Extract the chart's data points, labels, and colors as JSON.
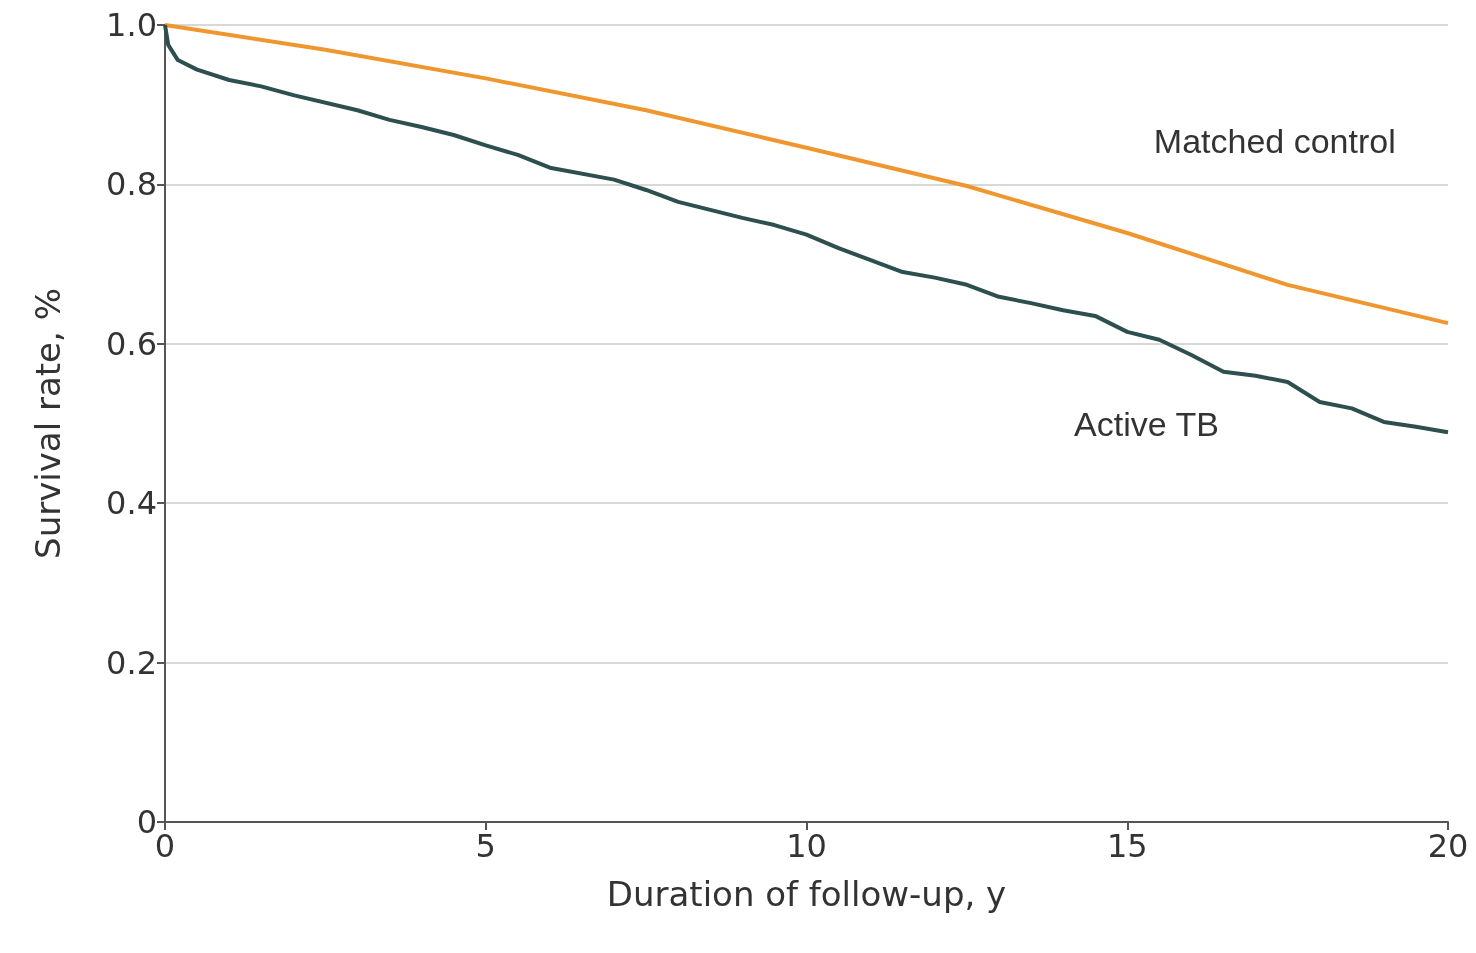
{
  "chart_data": {
    "type": "line",
    "xlabel": "Duration of follow-up, y",
    "ylabel": "Survival rate, %",
    "xlim": [
      0,
      20
    ],
    "xticks": [
      0,
      5,
      10,
      15,
      20
    ],
    "ylim": [
      0,
      1.0
    ],
    "yticks": [
      0,
      0.2,
      0.4,
      0.6,
      0.8,
      {
        "value": 1.0,
        "label": "1.0"
      }
    ],
    "grid": "y",
    "series": [
      {
        "name": "Matched control",
        "color": "#f0962e",
        "x": [
          0,
          2.5,
          5,
          7.5,
          10,
          12.5,
          15,
          17.5,
          20
        ],
        "values": [
          1.0,
          0.969,
          0.933,
          0.893,
          0.846,
          0.798,
          0.739,
          0.674,
          0.626
        ]
      },
      {
        "name": "Active TB",
        "color": "#2e4f4f",
        "x": [
          0,
          0.05,
          0.2,
          0.5,
          1,
          1.5,
          2,
          3,
          3.5,
          4,
          4.5,
          5,
          5.5,
          6,
          7,
          7.5,
          8,
          9,
          9.5,
          10,
          10.5,
          11,
          11.5,
          12,
          12.5,
          13,
          13.5,
          14,
          14.5,
          15,
          15.5,
          16,
          16.5,
          17,
          17.5,
          18,
          18.5,
          19,
          19.5,
          20
        ],
        "values": [
          1.0,
          0.975,
          0.956,
          0.944,
          0.931,
          0.923,
          0.912,
          0.893,
          0.881,
          0.872,
          0.862,
          0.849,
          0.837,
          0.821,
          0.806,
          0.793,
          0.778,
          0.758,
          0.749,
          0.737,
          0.72,
          0.705,
          0.69,
          0.683,
          0.674,
          0.659,
          0.651,
          0.642,
          0.635,
          0.615,
          0.605,
          0.586,
          0.565,
          0.56,
          0.552,
          0.527,
          0.519,
          0.502,
          0.496,
          0.489
        ]
      }
    ]
  }
}
